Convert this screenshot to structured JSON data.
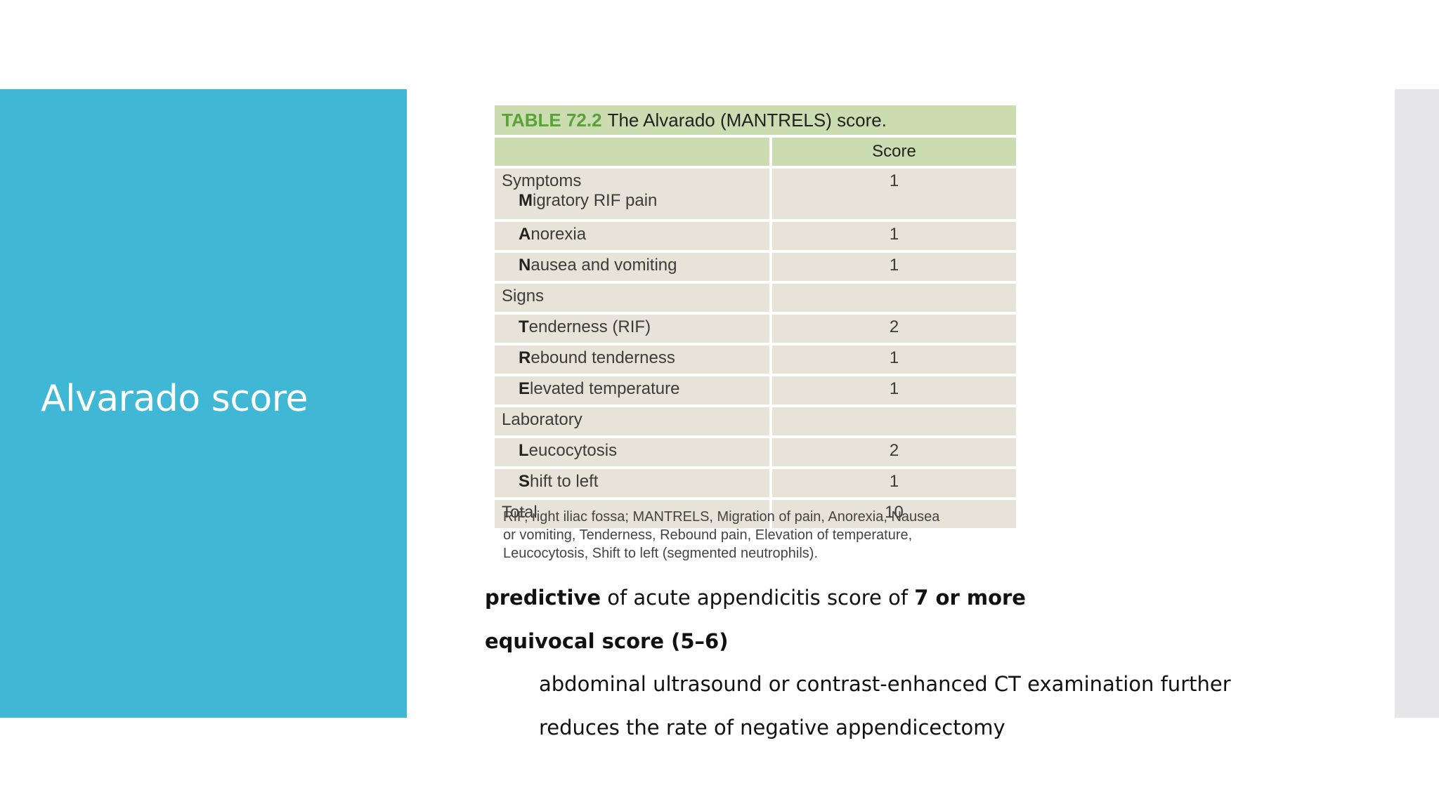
{
  "slide": {
    "title": "Alvarado score"
  },
  "table": {
    "caption_number": "TABLE 72.2",
    "caption_text": "The Alvarado (MANTRELS) score.",
    "score_header": "Score",
    "rows": [
      {
        "lead": "",
        "rest": "Symptoms",
        "sub_lead": "M",
        "sub_rest": "igratory RIF pain",
        "value": "1"
      },
      {
        "lead": "A",
        "rest": "norexia",
        "value": "1"
      },
      {
        "lead": "N",
        "rest": "ausea and vomiting",
        "value": "1"
      },
      {
        "lead": "",
        "rest": "Signs",
        "value": ""
      },
      {
        "lead": "T",
        "rest": "enderness (RIF)",
        "value": "2"
      },
      {
        "lead": "R",
        "rest": "ebound tenderness",
        "value": "1"
      },
      {
        "lead": "E",
        "rest": "levated temperature",
        "value": "1"
      },
      {
        "lead": "",
        "rest": "Laboratory",
        "value": ""
      },
      {
        "lead": "L",
        "rest": "eucocytosis",
        "value": "2"
      },
      {
        "lead": "S",
        "rest": "hift to left",
        "value": "1"
      },
      {
        "lead": "",
        "rest": "Total",
        "value": "10"
      }
    ],
    "footnote_lines": [
      "RIF, right iliac fossa; MANTRELS, Migration of pain, Anorexia, Nausea",
      "or vomiting, Tenderness, Rebound pain, Elevation of temperature,",
      "Leucocytosis, Shift to left (segmented neutrophils)."
    ]
  },
  "body": {
    "line1_bold": "predictive",
    "line1_text": " of acute appendicitis score of ",
    "line1_bold2": "7 or more",
    "line2_bold": "equivocal score (5–6)",
    "line3": "abdominal ultrasound or contrast-enhanced CT examination further",
    "line4": "reduces the rate of negative appendicectomy"
  }
}
